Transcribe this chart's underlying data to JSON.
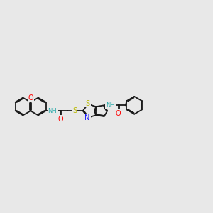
{
  "bg_color": "#e8e8e8",
  "bond_color": "#1a1a1a",
  "bond_width": 1.3,
  "dbo": 0.09,
  "atom_colors": {
    "O": "#ff0000",
    "N": "#1a1aff",
    "S": "#b8b800",
    "NH": "#2aaaaa"
  },
  "fig_width": 3.0,
  "fig_height": 3.0,
  "dpi": 100,
  "font_size": 6.0
}
